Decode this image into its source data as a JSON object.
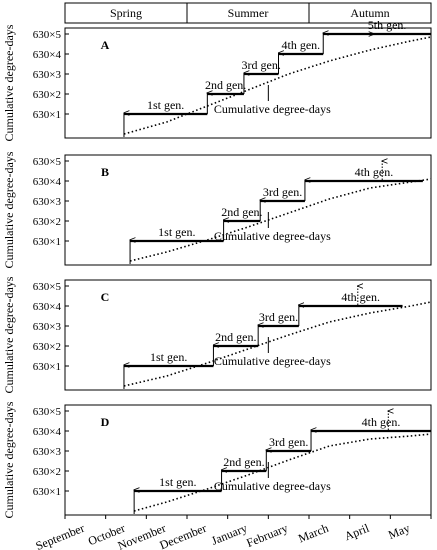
{
  "seasons": [
    "Spring",
    "Summer",
    "Autumn"
  ],
  "months": [
    "September",
    "October",
    "November",
    "December",
    "January",
    "February",
    "March",
    "April",
    "May"
  ],
  "ylabel": "Cumulative degree-days",
  "y_ticks": [
    "630×1",
    "630×2",
    "630×3",
    "630×4",
    "630×5"
  ],
  "curve_label": "Cumulative degree-days",
  "chart_data": [
    {
      "type": "line",
      "panel": "A",
      "ylabel": "Cumulative degree-days",
      "ylim": [
        0,
        5
      ],
      "x_range": [
        0,
        9
      ],
      "curve": {
        "x": [
          1.45,
          2.5,
          3.5,
          4.5,
          5.5,
          6.5,
          7.5,
          8.5,
          9.0
        ],
        "y": [
          0,
          0.6,
          1.4,
          2.2,
          3.0,
          3.65,
          4.2,
          4.65,
          4.85
        ]
      },
      "generations": [
        {
          "label": "1st gen.",
          "start": 1.45,
          "end": 3.5,
          "level": 1
        },
        {
          "label": "2nd gen.",
          "start": 3.5,
          "end": 4.4,
          "level": 2
        },
        {
          "label": "3rd gen.",
          "start": 4.4,
          "end": 5.25,
          "level": 3
        },
        {
          "label": "4th gen.",
          "start": 5.25,
          "end": 6.35,
          "level": 4
        },
        {
          "label": "5th gen.",
          "start": 6.35,
          "end": 9.0,
          "level": 5
        }
      ],
      "next_arrow_x": 7.6
    },
    {
      "type": "line",
      "panel": "B",
      "ylabel": "Cumulative degree-days",
      "ylim": [
        0,
        5
      ],
      "x_range": [
        0,
        9
      ],
      "curve": {
        "x": [
          1.6,
          2.5,
          3.5,
          4.5,
          5.5,
          6.5,
          7.5,
          8.5,
          9.0
        ],
        "y": [
          0,
          0.45,
          1.05,
          1.7,
          2.4,
          3.1,
          3.65,
          3.95,
          4.1
        ]
      },
      "generations": [
        {
          "label": "1st gen.",
          "start": 1.6,
          "end": 3.9,
          "level": 1
        },
        {
          "label": "2nd gen.",
          "start": 3.9,
          "end": 4.8,
          "level": 2
        },
        {
          "label": "3rd gen.",
          "start": 4.8,
          "end": 5.9,
          "level": 3
        },
        {
          "label": "4th gen.",
          "start": 5.9,
          "end": 8.8,
          "level": 4
        }
      ],
      "next_arrow_x": 7.8
    },
    {
      "type": "line",
      "panel": "C",
      "ylabel": "Cumulative degree-days",
      "ylim": [
        0,
        5
      ],
      "x_range": [
        0,
        9
      ],
      "curve": {
        "x": [
          1.45,
          2.5,
          3.5,
          4.5,
          5.5,
          6.5,
          7.5,
          8.5,
          9.0
        ],
        "y": [
          0,
          0.5,
          1.15,
          1.85,
          2.55,
          3.2,
          3.65,
          4.0,
          4.2
        ]
      },
      "generations": [
        {
          "label": "1st gen.",
          "start": 1.45,
          "end": 3.65,
          "level": 1
        },
        {
          "label": "2nd gen.",
          "start": 3.65,
          "end": 4.75,
          "level": 2
        },
        {
          "label": "3rd gen.",
          "start": 4.75,
          "end": 5.75,
          "level": 3
        },
        {
          "label": "4th gen.",
          "start": 5.75,
          "end": 8.3,
          "level": 4
        }
      ],
      "next_arrow_x": 7.2
    },
    {
      "type": "line",
      "panel": "D",
      "ylabel": "Cumulative degree-days",
      "ylim": [
        0,
        5
      ],
      "x_range": [
        0,
        9
      ],
      "curve": {
        "x": [
          1.7,
          2.5,
          3.5,
          4.5,
          5.5,
          6.5,
          7.5,
          8.5,
          9.0
        ],
        "y": [
          0,
          0.45,
          1.1,
          1.8,
          2.55,
          3.25,
          3.6,
          3.75,
          3.85
        ]
      },
      "generations": [
        {
          "label": "1st gen.",
          "start": 1.7,
          "end": 3.85,
          "level": 1
        },
        {
          "label": "2nd gen.",
          "start": 3.85,
          "end": 4.95,
          "level": 2
        },
        {
          "label": "3rd gen.",
          "start": 4.95,
          "end": 6.05,
          "level": 3
        },
        {
          "label": "4th gen.",
          "start": 6.05,
          "end": 9.0,
          "level": 4
        }
      ],
      "next_arrow_x": 7.95
    }
  ]
}
